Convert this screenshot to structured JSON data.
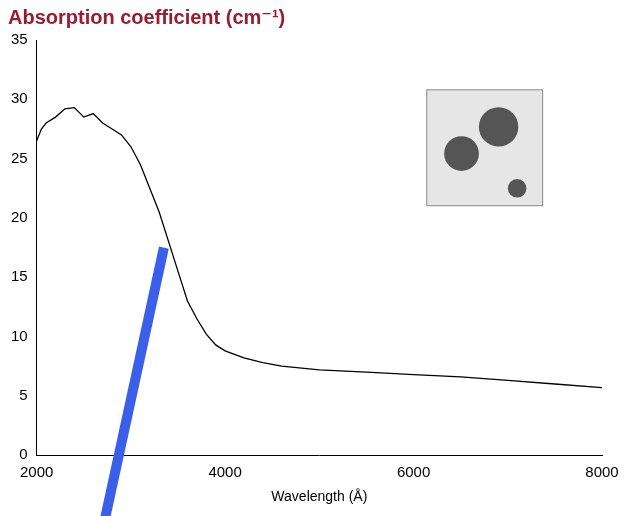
{
  "chart_data": {
    "type": "line",
    "title": "Absorption coefficient (cm⁻¹)",
    "x_label": "Wavelength (Å)",
    "x": [
      2000,
      2050,
      2100,
      2200,
      2300,
      2400,
      2500,
      2600,
      2700,
      2800,
      2900,
      3000,
      3100,
      3200,
      3300,
      3400,
      3500,
      3600,
      3700,
      3800,
      3900,
      4000,
      4200,
      4400,
      4600,
      5000,
      5500,
      6000,
      6500,
      7000,
      7500,
      8000
    ],
    "values": [
      26.5,
      27.5,
      28,
      28.5,
      29.2,
      29.3,
      28.5,
      28.8,
      28,
      27.5,
      27,
      26,
      24.5,
      22.5,
      20.5,
      18,
      15.5,
      13,
      11.5,
      10.2,
      9.3,
      8.8,
      8.2,
      7.8,
      7.5,
      7.2,
      7.0,
      6.8,
      6.6,
      6.3,
      6.0,
      5.7
    ],
    "color": "#000000",
    "xlim": [
      2000,
      8000
    ],
    "xticks": [
      2000,
      4000,
      6000,
      8000
    ],
    "ylim": [
      0,
      35
    ],
    "yticks": [
      0,
      5,
      10,
      15,
      20,
      25,
      30,
      35
    ],
    "grid": false
  }
}
